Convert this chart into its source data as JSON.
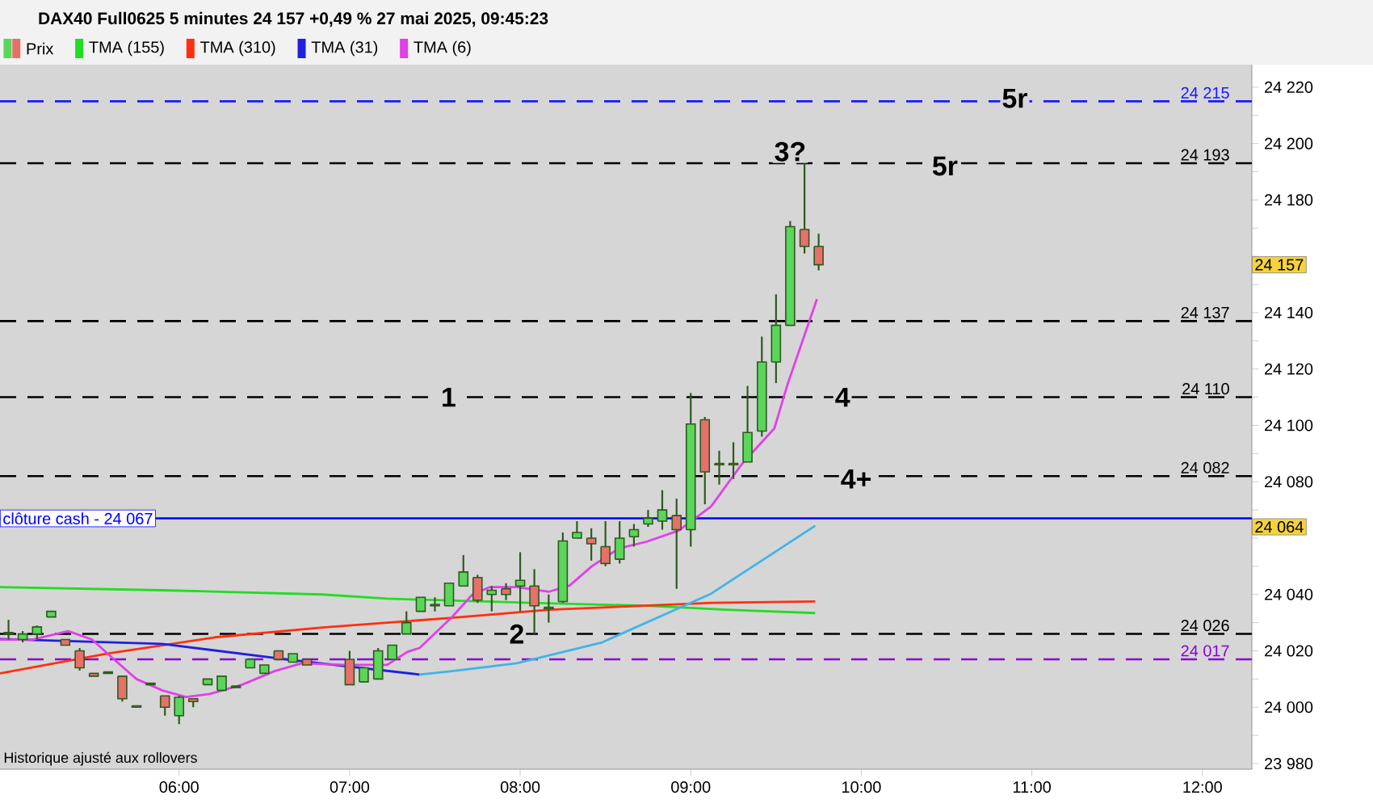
{
  "chart_data": {
    "type": "candlestick",
    "title": "DAX40 Full0625 5 minutes 24 157 +0,49 % 27 mai 2025, 09:45:23",
    "xlim": [
      4.95,
      12.29
    ],
    "ylim": [
      23978,
      24228
    ],
    "xticks": [
      {
        "value": 6,
        "label": "06:00"
      },
      {
        "value": 7,
        "label": "07:00"
      },
      {
        "value": 8,
        "label": "08:00"
      },
      {
        "value": 9,
        "label": "09:00"
      },
      {
        "value": 10,
        "label": "10:00"
      },
      {
        "value": 11,
        "label": "11:00"
      },
      {
        "value": 12,
        "label": "12:00"
      }
    ],
    "yticks": [
      {
        "value": 23980,
        "label": "23 980"
      },
      {
        "value": 23990,
        "label": null
      },
      {
        "value": 24000,
        "label": "24 000"
      },
      {
        "value": 24010,
        "label": null
      },
      {
        "value": 24020,
        "label": "24 020"
      },
      {
        "value": 24030,
        "label": null
      },
      {
        "value": 24040,
        "label": "24 040"
      },
      {
        "value": 24050,
        "label": null
      },
      {
        "value": 24060,
        "label": null
      },
      {
        "value": 24070,
        "label": null
      },
      {
        "value": 24080,
        "label": "24 080"
      },
      {
        "value": 24090,
        "label": null
      },
      {
        "value": 24100,
        "label": "24 100"
      },
      {
        "value": 24110,
        "label": null
      },
      {
        "value": 24120,
        "label": "24 120"
      },
      {
        "value": 24130,
        "label": null
      },
      {
        "value": 24140,
        "label": "24 140"
      },
      {
        "value": 24150,
        "label": null
      },
      {
        "value": 24160,
        "label": null
      },
      {
        "value": 24170,
        "label": null
      },
      {
        "value": 24180,
        "label": "24 180"
      },
      {
        "value": 24190,
        "label": null
      },
      {
        "value": 24200,
        "label": "24 200"
      },
      {
        "value": 24210,
        "label": null
      },
      {
        "value": 24220,
        "label": "24 220"
      }
    ],
    "legend": "top left",
    "series": [
      {
        "name": "Prix",
        "type": "candlestick",
        "x": [
          5.0,
          5.083,
          5.167,
          5.25,
          5.333,
          5.417,
          5.5,
          5.583,
          5.667,
          5.75,
          5.833,
          5.917,
          6.0,
          6.083,
          6.167,
          6.25,
          6.333,
          6.417,
          6.5,
          6.583,
          6.667,
          6.75,
          7.0,
          7.083,
          7.167,
          7.25,
          7.333,
          7.417,
          7.5,
          7.583,
          7.667,
          7.75,
          7.833,
          7.917,
          8.0,
          8.083,
          8.167,
          8.25,
          8.333,
          8.417,
          8.5,
          8.583,
          8.667,
          8.75,
          8.833,
          8.917,
          9.0,
          9.083,
          9.167,
          9.25,
          9.333,
          9.417,
          9.5,
          9.583,
          9.667,
          9.75
        ],
        "ohlc": [
          [
            24026,
            24031,
            24024,
            24026.5
          ],
          [
            24024,
            24027,
            24023,
            24026
          ],
          [
            24026,
            24029,
            24024,
            24028.5
          ],
          [
            24032,
            24034,
            24032,
            24034
          ],
          [
            24024,
            24024,
            24022,
            24022
          ],
          [
            24020,
            24021,
            24013,
            24014
          ],
          [
            24012,
            24012,
            24011,
            24011
          ],
          [
            24012.5,
            24012.5,
            24012,
            24012
          ],
          [
            24011,
            24011,
            24002,
            24003
          ],
          [
            24000.5,
            24000.5,
            24000,
            24000
          ],
          [
            24008.5,
            24008.5,
            24008,
            24008
          ],
          [
            24004,
            24004,
            23997,
            24000
          ],
          [
            23997,
            24004,
            23994,
            24003.5
          ],
          [
            24003,
            24003,
            24000,
            24002
          ],
          [
            24008,
            24010,
            24008,
            24010
          ],
          [
            24006,
            24011,
            24006,
            24011
          ],
          [
            24007.5,
            24007.5,
            24007,
            24007
          ],
          [
            24014,
            24017,
            24014,
            24017
          ],
          [
            24012,
            24015,
            24012,
            24015
          ],
          [
            24020,
            24020,
            24017,
            24017
          ],
          [
            24016,
            24019,
            24016,
            24019
          ],
          [
            24017,
            24017,
            24015,
            24015
          ],
          [
            24017,
            24020,
            24008,
            24008
          ],
          [
            24009,
            24014,
            24009,
            24014
          ],
          [
            24010,
            24021,
            24010,
            24020
          ],
          [
            24017,
            24022,
            24017,
            24022
          ],
          [
            24026,
            24034,
            24026,
            24030
          ],
          [
            24034,
            24039,
            24034,
            24039
          ],
          [
            24036.5,
            24039,
            24034,
            24036
          ],
          [
            24036,
            24044,
            24036,
            24044
          ],
          [
            24043,
            24054,
            24043,
            24048
          ],
          [
            24046,
            24047,
            24037,
            24038
          ],
          [
            24040,
            24043,
            24034,
            24041.5
          ],
          [
            24042,
            24044,
            24038,
            24040
          ],
          [
            24043,
            24055,
            24034,
            24045
          ],
          [
            24043,
            24049,
            24026,
            24036
          ],
          [
            24035.5,
            24040,
            24030,
            24035
          ],
          [
            24037.5,
            24062,
            24037,
            24059
          ],
          [
            24060,
            24066,
            24060,
            24062
          ],
          [
            24060,
            24063.5,
            24052,
            24058
          ],
          [
            24057,
            24066,
            24050,
            24051
          ],
          [
            24052.5,
            24066,
            24051,
            24060
          ],
          [
            24060.5,
            24065,
            24057,
            24063
          ],
          [
            24065,
            24070,
            24064,
            24067
          ],
          [
            24066,
            24077,
            24063,
            24070
          ],
          [
            24068,
            24074,
            24042,
            24063
          ],
          [
            24063,
            24111.5,
            24057,
            24100.5
          ],
          [
            24102,
            24103,
            24072,
            24083.5
          ],
          [
            24086.5,
            24091,
            24079,
            24086
          ],
          [
            24086.5,
            24094,
            24081,
            24086
          ],
          [
            24087,
            24114,
            24087,
            24097.5
          ],
          [
            24098,
            24131.5,
            24096,
            24122.5
          ],
          [
            24122.5,
            24146.5,
            24115,
            24135.5
          ],
          [
            24135.5,
            24172.5,
            24135.5,
            24170.5
          ],
          [
            24169.5,
            24193,
            24161,
            24163.5
          ],
          [
            24163.5,
            24168,
            24155,
            24157
          ]
        ],
        "colors": [
          "#5ad65a",
          "#5ad65a",
          "#5ad65a",
          "#5ad65a",
          "#e8706a",
          "#e8706a",
          "#e8706a",
          "#e8706a",
          "#e8706a",
          "#e8706a",
          "#e8706a",
          "#e8706a",
          "#5ad65a",
          "#e8706a",
          "#5ad65a",
          "#5ad65a",
          "#e8706a",
          "#5ad65a",
          "#5ad65a",
          "#e8706a",
          "#5ad65a",
          "#e8706a",
          "#e8706a",
          "#5ad65a",
          "#5ad65a",
          "#5ad65a",
          "#5ad65a",
          "#5ad65a",
          "#e8706a",
          "#5ad65a",
          "#5ad65a",
          "#e8706a",
          "#5ad65a",
          "#e8706a",
          "#5ad65a",
          "#e8706a",
          "#e8706a",
          "#5ad65a",
          "#5ad65a",
          "#e8706a",
          "#e8706a",
          "#5ad65a",
          "#5ad65a",
          "#5ad65a",
          "#5ad65a",
          "#e8706a",
          "#5ad65a",
          "#e8706a",
          "#e8706a",
          "#e8706a",
          "#5ad65a",
          "#5ad65a",
          "#5ad65a",
          "#5ad65a",
          "#e8706a",
          "#e8706a"
        ]
      },
      {
        "name": "TMA (155)",
        "type": "line",
        "color": "#22dd22",
        "x": [
          4.95,
          5.9,
          6.84,
          7.22,
          7.51,
          8.07,
          8.74,
          9.21,
          9.73
        ],
        "values": [
          24042.6,
          24041.5,
          24040,
          24038.5,
          24038,
          24037,
          24036,
          24034.6,
          24033.4
        ]
      },
      {
        "name": "TMA (310)",
        "type": "line",
        "color": "#ff3010",
        "x": [
          4.95,
          5.58,
          6.21,
          6.84,
          7.22,
          7.6,
          8.17,
          9.12,
          9.73
        ],
        "values": [
          24012,
          24019,
          24024.8,
          24028.3,
          24030,
          24031.7,
          24034.6,
          24037,
          24037.5
        ]
      },
      {
        "name": "TMA (31)",
        "type": "line",
        "color": "#2020e0",
        "x": [
          4.95,
          5.9,
          6.65,
          7.41
        ],
        "values": [
          24024.2,
          24022.5,
          24016.8,
          24011.6
        ]
      },
      {
        "type": "line",
        "color": "#40b4e8",
        "x": [
          7.41,
          7.6,
          7.98,
          8.48,
          9.12,
          9.73
        ],
        "values": [
          24011.6,
          24012.8,
          24015.6,
          24023,
          24040.3,
          24064.4
        ]
      },
      {
        "name": "TMA (6)",
        "type": "line",
        "color": "#e040e8",
        "x": [
          4.95,
          5.14,
          5.35,
          5.49,
          5.61,
          5.75,
          5.9,
          6.04,
          6.18,
          6.37,
          6.56,
          6.72,
          6.97,
          7.22,
          7.34,
          7.41,
          7.6,
          7.72,
          7.82,
          7.98,
          8.17,
          8.29,
          8.42,
          8.58,
          8.74,
          8.93,
          9.12,
          9.3,
          9.49,
          9.57,
          9.74
        ],
        "values": [
          24024,
          24024,
          24027,
          24024,
          24017.4,
          24010,
          24006,
          24003.6,
          24004.7,
          24008,
          24012.8,
          24015.6,
          24015,
          24015,
          24019.7,
          24021,
          24032,
          24040,
          24042.6,
          24042.6,
          24041,
          24043.2,
          24050,
          24056.4,
          24058.7,
          24062.7,
          24071.3,
          24086.3,
          24098.9,
          24115,
          24144.8
        ]
      }
    ],
    "ref_lines": [
      {
        "axis": "y",
        "value": 24215,
        "label": "24 215",
        "color": "#1a1aff",
        "line_style": "dashed"
      },
      {
        "axis": "y",
        "value": 24193,
        "label": "24 193",
        "color": "#000000",
        "line_style": "dashed"
      },
      {
        "axis": "y",
        "value": 24137,
        "label": "24 137",
        "color": "#000000",
        "line_style": "dashed"
      },
      {
        "axis": "y",
        "value": 24110,
        "label": "24 110",
        "color": "#000000",
        "line_style": "dashed"
      },
      {
        "axis": "y",
        "value": 24082,
        "label": "24 082",
        "color": "#000000",
        "line_style": "dashed"
      },
      {
        "axis": "y",
        "value": 24067,
        "label": "clôture cash - 24 067",
        "color": "#0000ff",
        "line_style": "solid"
      },
      {
        "axis": "y",
        "value": 24026,
        "label": "24 026",
        "color": "#000000",
        "line_style": "dashed"
      },
      {
        "axis": "y",
        "value": 24017,
        "label": "24 017",
        "color": "#8a00d4",
        "line_style": "dashed"
      }
    ],
    "annotations": [
      {
        "text": "1",
        "x": 7.58,
        "y": 24110
      },
      {
        "text": "2",
        "x": 7.98,
        "y": 24026
      },
      {
        "text": "3?",
        "x": 9.583,
        "y": 24193
      },
      {
        "text": "4",
        "x": 9.89,
        "y": 24110
      },
      {
        "text": "4+",
        "x": 9.97,
        "y": 24081
      },
      {
        "text": "5r",
        "x": 10.49,
        "y": 24192
      },
      {
        "text": "5r",
        "x": 10.9,
        "y": 24216
      },
      {
        "text": "24 157",
        "y": 24157
      },
      {
        "text": "24 064",
        "y": 24064
      },
      "Historique ajusté aux rollovers"
    ]
  }
}
